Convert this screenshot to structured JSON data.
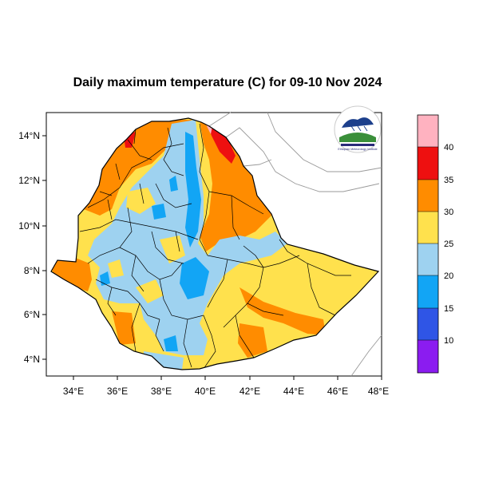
{
  "title": "Daily maximum temperature (C) for 09-10 Nov 2024",
  "map": {
    "x_ticks": [
      "34°E",
      "36°E",
      "38°E",
      "40°E",
      "42°E",
      "44°E",
      "46°E",
      "48°E"
    ],
    "y_ticks": [
      "14°N",
      "12°N",
      "10°N",
      "8°N",
      "6°N",
      "4°N"
    ],
    "lon_range": [
      33,
      48.2
    ],
    "lat_range": [
      3.2,
      15
    ],
    "logo_text": "Ethiopian Meteorology Institute"
  },
  "colorbar": {
    "labels": [
      "10",
      "15",
      "20",
      "25",
      "30",
      "35",
      "40"
    ],
    "colors": [
      "#8b1cf0",
      "#2f55e6",
      "#12a5f5",
      "#9ed2f0",
      "#ffe14d",
      "#ff8c00",
      "#ee1010",
      "#ffb2c0"
    ]
  }
}
